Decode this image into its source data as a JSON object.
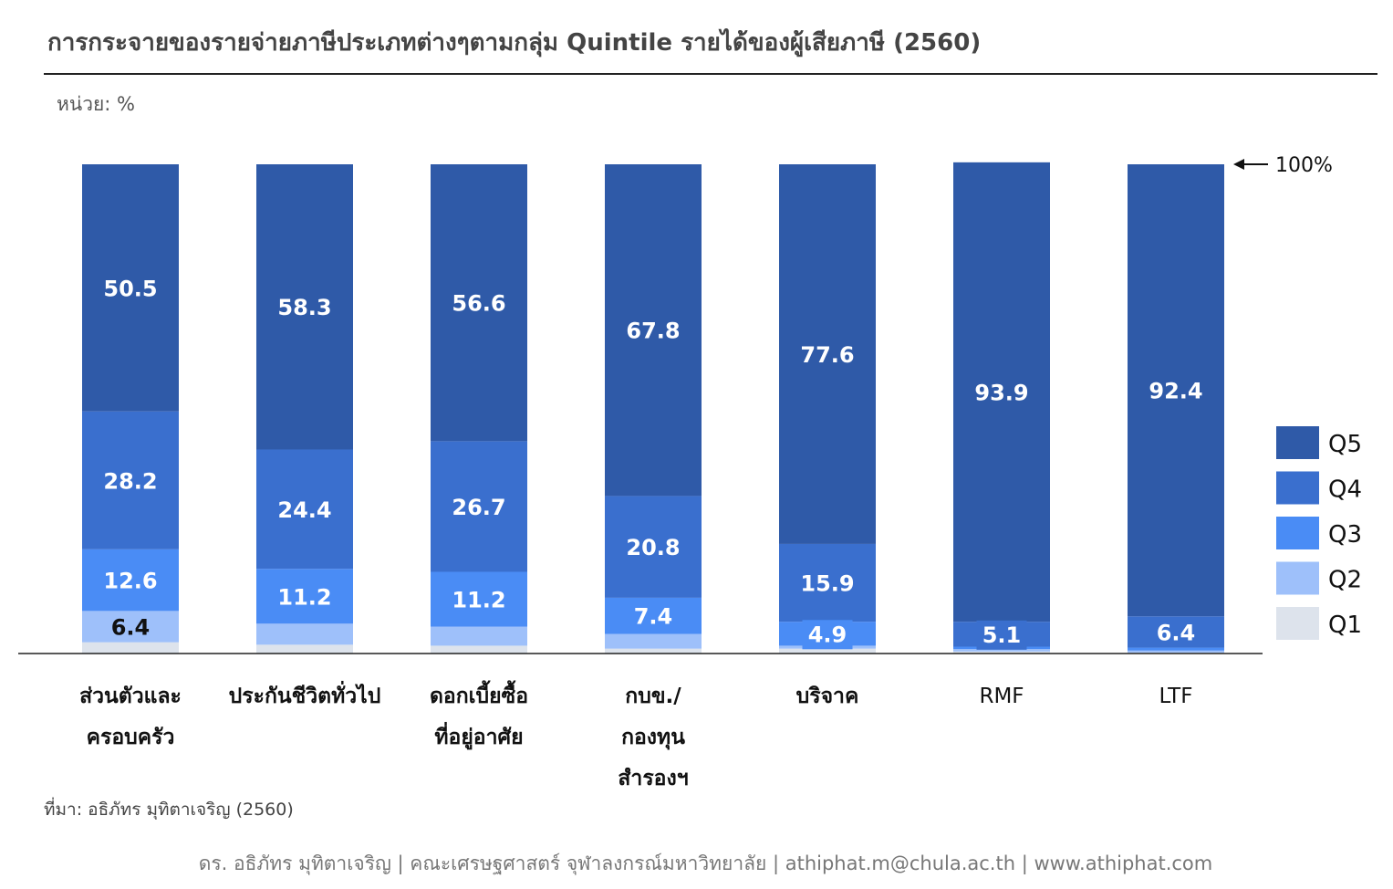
{
  "title": "การกระจายของรายจ่ายภาษีประเภทต่างๆตามกลุ่ม Quintile รายได้ของผู้เสียภาษี (2560)",
  "unit_label": "หน่วย: %",
  "marker_label": "100%",
  "source": "ที่มา: อธิภัทร มุทิตาเจริญ (2560)",
  "footer": "ดร. อธิภัทร มุทิตาเจริญ | คณะเศรษฐศาสตร์ จุฬาลงกรณ์มหาวิทยาลัย | athiphat.m@chula.ac.th | www.athiphat.com",
  "colors": {
    "Q5": "#2f5aa8",
    "Q4": "#3a6fce",
    "Q3": "#4a8cf5",
    "Q2": "#9ec0fa",
    "Q1": "#dde3ec",
    "label_light": "#ffffff",
    "label_dark": "#111111"
  },
  "chart_data": {
    "type": "bar",
    "stacked": true,
    "categories": [
      [
        "ส่วนตัวและ",
        "ครอบครัว"
      ],
      [
        "ประกันชีวิตทั่วไป"
      ],
      [
        "ดอกเบี้ยซื้อ",
        "ที่อยู่อาศัย"
      ],
      [
        "กบข./",
        "กองทุน",
        "สำรองฯ"
      ],
      [
        "บริจาค"
      ],
      [
        "RMF"
      ],
      [
        "LTF"
      ]
    ],
    "series": [
      {
        "name": "Q1",
        "values": [
          2.3,
          1.8,
          1.6,
          1.0,
          1.0,
          0.4,
          0.2
        ]
      },
      {
        "name": "Q2",
        "values": [
          6.4,
          4.3,
          3.9,
          3.0,
          0.6,
          0.5,
          0.4
        ]
      },
      {
        "name": "Q3",
        "values": [
          12.6,
          11.2,
          11.2,
          7.4,
          4.9,
          0.5,
          0.6
        ]
      },
      {
        "name": "Q4",
        "values": [
          28.2,
          24.4,
          26.7,
          20.8,
          15.9,
          5.1,
          6.4
        ]
      },
      {
        "name": "Q5",
        "values": [
          50.5,
          58.3,
          56.6,
          67.8,
          77.6,
          93.9,
          92.4
        ]
      }
    ],
    "data_labels": [
      {
        "Q2": "6.4",
        "Q3": "12.6",
        "Q4": "28.2",
        "Q5": "50.5"
      },
      {
        "Q3": "11.2",
        "Q4": "24.4",
        "Q5": "58.3"
      },
      {
        "Q3": "11.2",
        "Q4": "26.7",
        "Q5": "56.6"
      },
      {
        "Q3": "7.4",
        "Q4": "20.8",
        "Q5": "67.8"
      },
      {
        "Q3": "4.9",
        "Q4": "15.9",
        "Q5": "77.6"
      },
      {
        "Q4": "5.1",
        "Q5": "93.9"
      },
      {
        "Q4": "6.4",
        "Q5": "92.4"
      }
    ],
    "ylim": [
      0,
      100
    ],
    "legend_position": "right",
    "legend_order": [
      "Q5",
      "Q4",
      "Q3",
      "Q2",
      "Q1"
    ]
  }
}
